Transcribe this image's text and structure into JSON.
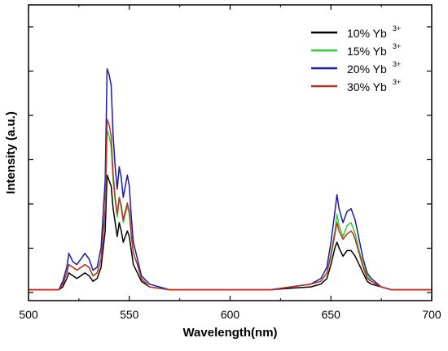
{
  "chart_data": {
    "type": "line",
    "xlabel": "Wavelength(nm)",
    "ylabel": "Intensity (a.u.)",
    "xlim": [
      500,
      700
    ],
    "ylim": [
      0,
      1.0
    ],
    "x_ticks": [
      "500",
      "550",
      "600",
      "650",
      "700"
    ],
    "y_tick_labels_shown": false,
    "grid": false,
    "legend": "top-right",
    "x": [
      500,
      510,
      515,
      517,
      519,
      520,
      522,
      524,
      526,
      528,
      530,
      532,
      534,
      536,
      538,
      539,
      540,
      541,
      542,
      543,
      544,
      545,
      546,
      547,
      548,
      549,
      550,
      551,
      552,
      554,
      556,
      560,
      570,
      580,
      590,
      600,
      610,
      620,
      630,
      640,
      645,
      648,
      650,
      652,
      653,
      654,
      656,
      658,
      660,
      661,
      662,
      664,
      666,
      668,
      670,
      675,
      680,
      690,
      700
    ],
    "series": [
      {
        "name": "10% Yb",
        "sup": "3+",
        "color": "#000000",
        "values": [
          0.01,
          0.01,
          0.01,
          0.02,
          0.05,
          0.07,
          0.06,
          0.05,
          0.06,
          0.07,
          0.06,
          0.04,
          0.05,
          0.09,
          0.22,
          0.42,
          0.4,
          0.38,
          0.3,
          0.25,
          0.2,
          0.25,
          0.22,
          0.18,
          0.2,
          0.22,
          0.2,
          0.15,
          0.1,
          0.07,
          0.04,
          0.02,
          0.01,
          0.01,
          0.01,
          0.01,
          0.01,
          0.01,
          0.015,
          0.02,
          0.03,
          0.05,
          0.1,
          0.16,
          0.18,
          0.16,
          0.13,
          0.15,
          0.15,
          0.14,
          0.13,
          0.1,
          0.07,
          0.04,
          0.03,
          0.02,
          0.01,
          0.01,
          0.01
        ]
      },
      {
        "name": "15% Yb",
        "sup": "3+",
        "color": "#33cc33",
        "values": [
          0.01,
          0.01,
          0.01,
          0.03,
          0.07,
          0.1,
          0.09,
          0.08,
          0.09,
          0.1,
          0.09,
          0.06,
          0.07,
          0.12,
          0.3,
          0.58,
          0.56,
          0.52,
          0.4,
          0.33,
          0.27,
          0.34,
          0.3,
          0.25,
          0.28,
          0.31,
          0.28,
          0.2,
          0.14,
          0.1,
          0.05,
          0.02,
          0.01,
          0.01,
          0.01,
          0.01,
          0.01,
          0.01,
          0.02,
          0.03,
          0.04,
          0.07,
          0.14,
          0.22,
          0.28,
          0.24,
          0.2,
          0.24,
          0.25,
          0.23,
          0.21,
          0.15,
          0.1,
          0.06,
          0.04,
          0.02,
          0.01,
          0.01,
          0.01
        ]
      },
      {
        "name": "20% Yb",
        "sup": "3+",
        "color": "#1a1aaa",
        "values": [
          0.01,
          0.01,
          0.01,
          0.04,
          0.09,
          0.14,
          0.11,
          0.1,
          0.12,
          0.14,
          0.12,
          0.08,
          0.09,
          0.16,
          0.4,
          0.8,
          0.78,
          0.74,
          0.56,
          0.45,
          0.37,
          0.45,
          0.41,
          0.34,
          0.38,
          0.42,
          0.38,
          0.27,
          0.18,
          0.12,
          0.06,
          0.03,
          0.01,
          0.01,
          0.01,
          0.01,
          0.01,
          0.01,
          0.02,
          0.03,
          0.05,
          0.09,
          0.18,
          0.29,
          0.35,
          0.3,
          0.25,
          0.29,
          0.3,
          0.28,
          0.26,
          0.19,
          0.12,
          0.07,
          0.05,
          0.02,
          0.01,
          0.01,
          0.01
        ]
      },
      {
        "name": "30% Yb",
        "sup": "3+",
        "color": "#bb3322",
        "values": [
          0.01,
          0.01,
          0.01,
          0.03,
          0.07,
          0.1,
          0.09,
          0.08,
          0.09,
          0.1,
          0.09,
          0.06,
          0.07,
          0.12,
          0.3,
          0.62,
          0.6,
          0.56,
          0.42,
          0.34,
          0.28,
          0.34,
          0.31,
          0.26,
          0.29,
          0.32,
          0.29,
          0.21,
          0.14,
          0.1,
          0.05,
          0.02,
          0.01,
          0.01,
          0.01,
          0.01,
          0.01,
          0.01,
          0.02,
          0.03,
          0.04,
          0.07,
          0.13,
          0.21,
          0.25,
          0.22,
          0.19,
          0.21,
          0.22,
          0.21,
          0.19,
          0.14,
          0.09,
          0.05,
          0.04,
          0.02,
          0.01,
          0.01,
          0.01
        ]
      }
    ]
  }
}
